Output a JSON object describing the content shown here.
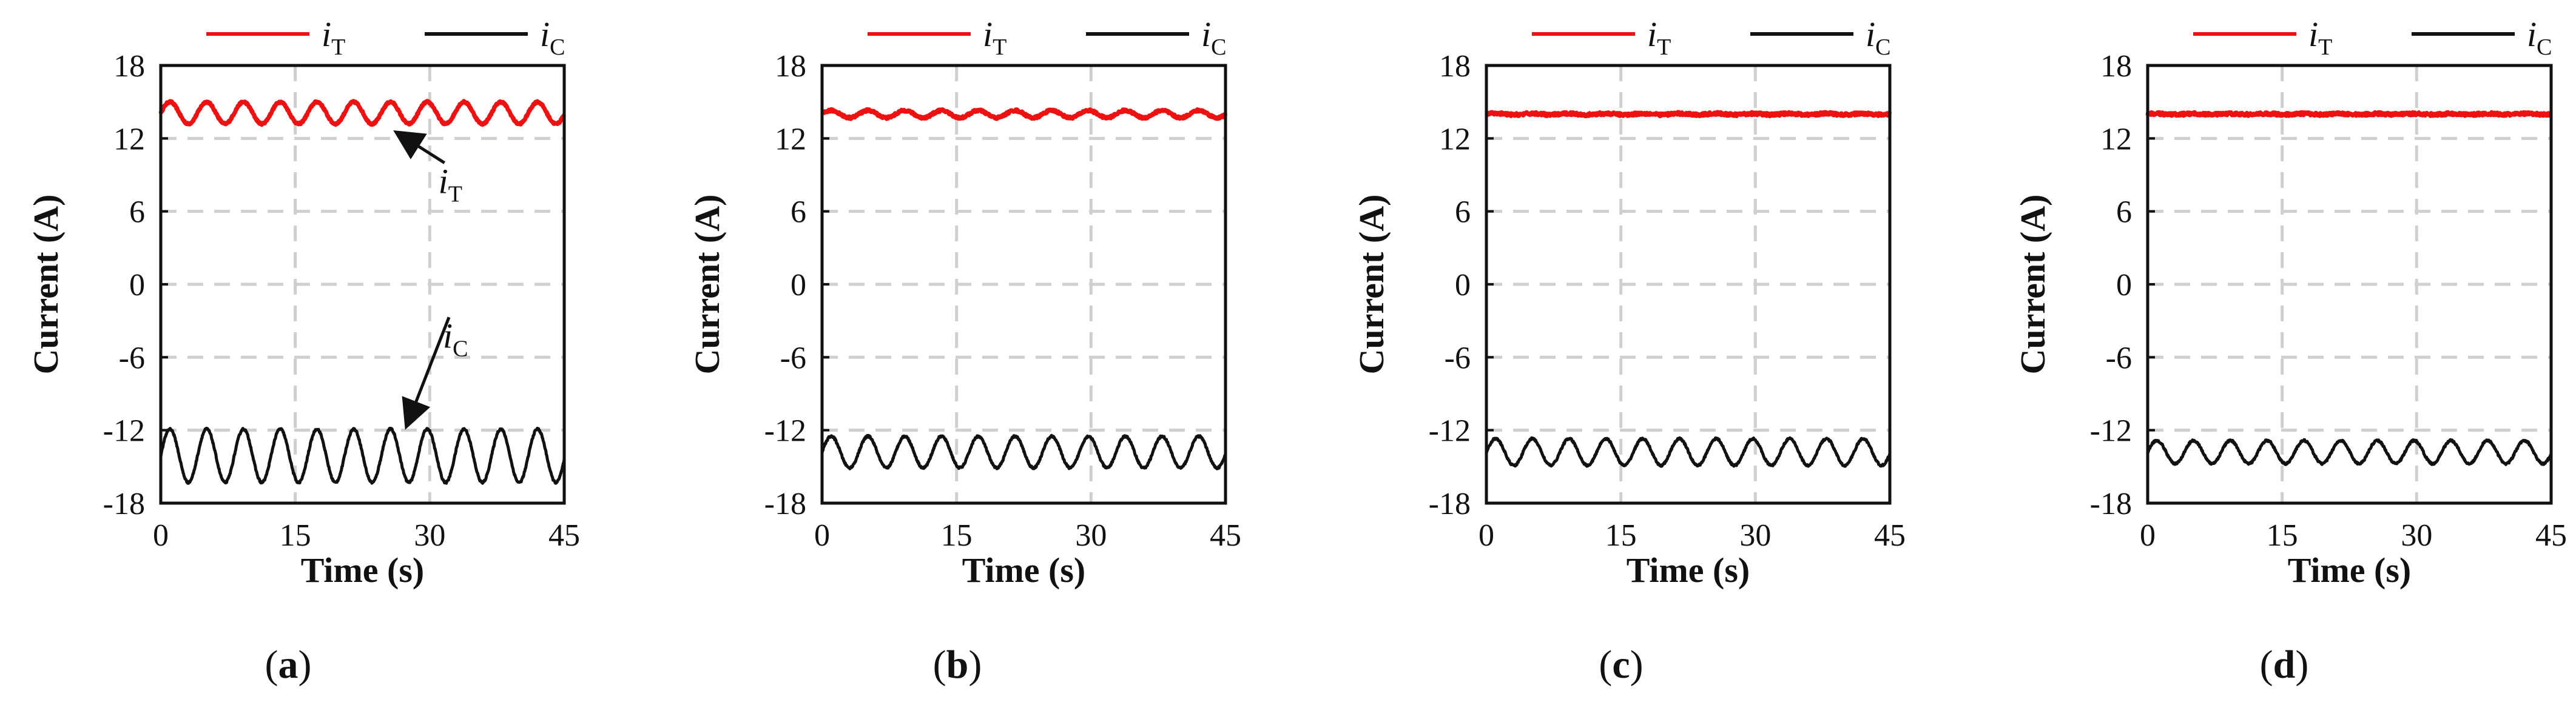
{
  "colors": {
    "iT": "#ee1111",
    "iC": "#111111",
    "grid": "#cfcfcf",
    "axis": "#111111"
  },
  "chart_data": [
    {
      "type": "line",
      "panel_label": "a",
      "xlabel": "Time (s)",
      "ylabel": "Current (A)",
      "xlim": [
        0,
        45
      ],
      "ylim": [
        -18,
        18
      ],
      "xticks": [
        0,
        15,
        30,
        45
      ],
      "yticks": [
        18,
        12,
        6,
        0,
        -6,
        -12,
        -18
      ],
      "grid": true,
      "legend": [
        {
          "name": "i",
          "sub": "T",
          "color_key": "iT"
        },
        {
          "name": "i",
          "sub": "C",
          "color_key": "iC"
        }
      ],
      "annotations": [
        {
          "text": "i",
          "sub": "T",
          "x": 33,
          "y": 7.5,
          "arrow_to": [
            26.5,
            12.4
          ]
        },
        {
          "text": "i",
          "sub": "C",
          "x": 33.5,
          "y": -5.2,
          "arrow_to": [
            27.5,
            -11.5
          ]
        }
      ],
      "series": [
        {
          "name": "iT",
          "mean": 14.1,
          "amplitude": 0.9,
          "period": 4.1,
          "phase": 0.0,
          "noise": 0.08
        },
        {
          "name": "iC",
          "mean": -14.1,
          "amplitude": 2.2,
          "period": 4.1,
          "phase": 0.0,
          "noise": 0.08
        }
      ]
    },
    {
      "type": "line",
      "panel_label": "b",
      "xlabel": "Time (s)",
      "ylabel": "Current (A)",
      "xlim": [
        0,
        45
      ],
      "ylim": [
        -18,
        18
      ],
      "xticks": [
        0,
        15,
        30,
        45
      ],
      "yticks": [
        18,
        12,
        6,
        0,
        -6,
        -12,
        -18
      ],
      "grid": true,
      "legend": [
        {
          "name": "i",
          "sub": "T",
          "color_key": "iT"
        },
        {
          "name": "i",
          "sub": "C",
          "color_key": "iC"
        }
      ],
      "annotations": [],
      "series": [
        {
          "name": "iT",
          "mean": 14.0,
          "amplitude": 0.3,
          "period": 4.1,
          "phase": 0.0,
          "noise": 0.1
        },
        {
          "name": "iC",
          "mean": -13.8,
          "amplitude": 1.3,
          "period": 4.1,
          "phase": 0.0,
          "noise": 0.08
        }
      ]
    },
    {
      "type": "line",
      "panel_label": "c",
      "xlabel": "Time (s)",
      "ylabel": "Current (A)",
      "xlim": [
        0,
        45
      ],
      "ylim": [
        -18,
        18
      ],
      "xticks": [
        0,
        15,
        30,
        45
      ],
      "yticks": [
        18,
        12,
        6,
        0,
        -6,
        -12,
        -18
      ],
      "grid": true,
      "legend": [
        {
          "name": "i",
          "sub": "T",
          "color_key": "iT"
        },
        {
          "name": "i",
          "sub": "C",
          "color_key": "iC"
        }
      ],
      "annotations": [],
      "series": [
        {
          "name": "iT",
          "mean": 14.0,
          "amplitude": 0.05,
          "period": 4.1,
          "phase": 0.0,
          "noise": 0.12
        },
        {
          "name": "iC",
          "mean": -13.8,
          "amplitude": 1.1,
          "period": 4.1,
          "phase": 0.0,
          "noise": 0.08
        }
      ]
    },
    {
      "type": "line",
      "panel_label": "d",
      "xlabel": "Time (s)",
      "ylabel": "Current (A)",
      "xlim": [
        0,
        45
      ],
      "ylim": [
        -18,
        18
      ],
      "xticks": [
        0,
        15,
        30,
        45
      ],
      "yticks": [
        18,
        12,
        6,
        0,
        -6,
        -12,
        -18
      ],
      "grid": true,
      "legend": [
        {
          "name": "i",
          "sub": "T",
          "color_key": "iT"
        },
        {
          "name": "i",
          "sub": "C",
          "color_key": "iC"
        }
      ],
      "annotations": [],
      "series": [
        {
          "name": "iT",
          "mean": 14.0,
          "amplitude": 0.03,
          "period": 4.1,
          "phase": 0.0,
          "noise": 0.12
        },
        {
          "name": "iC",
          "mean": -13.8,
          "amplitude": 0.95,
          "period": 4.1,
          "phase": 0.0,
          "noise": 0.08
        }
      ]
    }
  ]
}
